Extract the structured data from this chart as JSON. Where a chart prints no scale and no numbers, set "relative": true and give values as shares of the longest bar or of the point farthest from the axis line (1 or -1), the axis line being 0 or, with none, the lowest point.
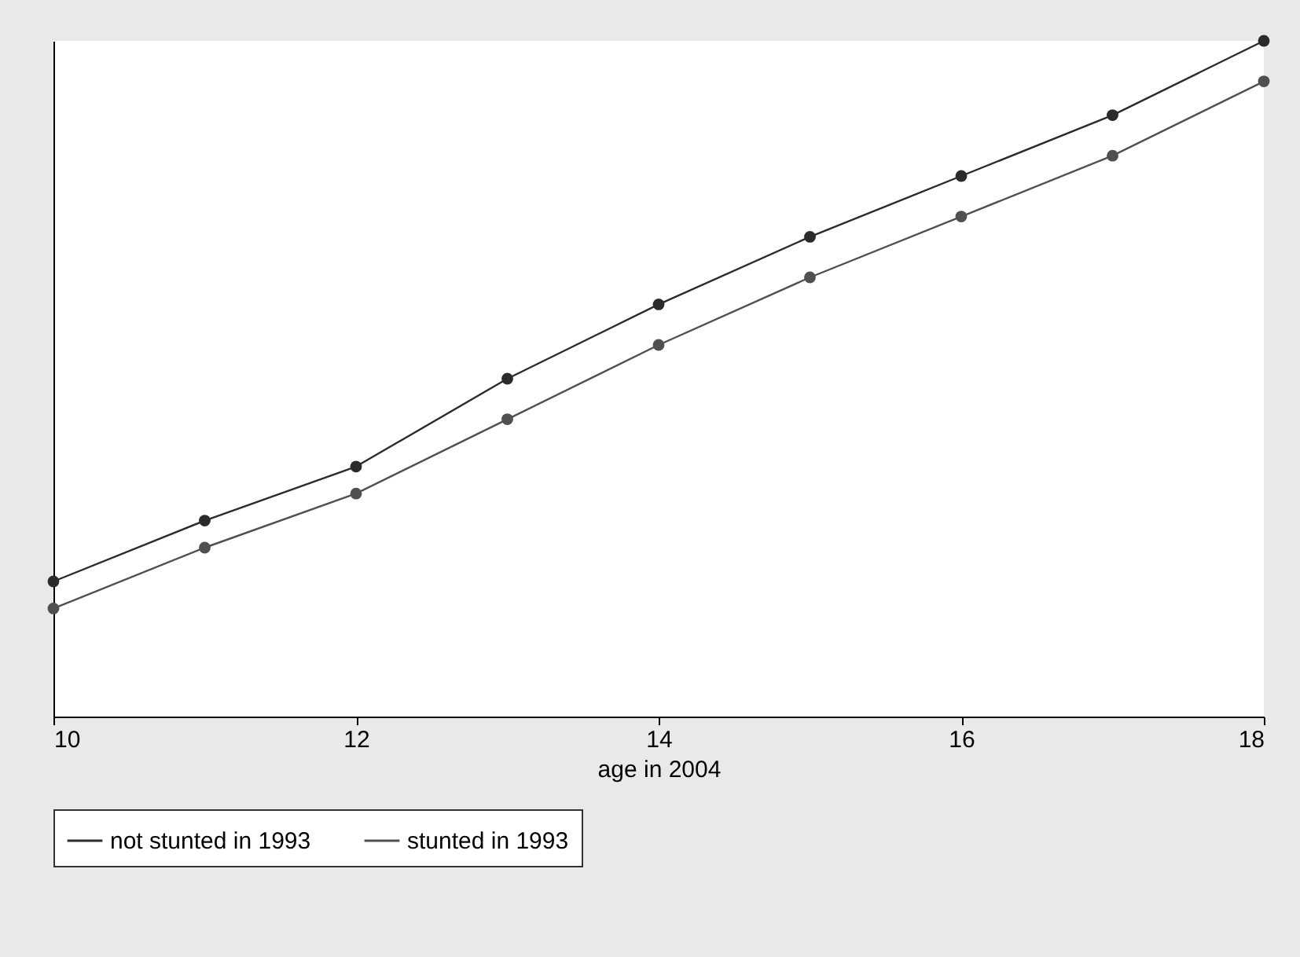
{
  "chart_data": {
    "type": "line",
    "xlabel": "age in 2004",
    "x": [
      10,
      11,
      12,
      13,
      14,
      15,
      16,
      17,
      18
    ],
    "xlim": [
      10,
      18
    ],
    "xticks": [
      10,
      12,
      14,
      16,
      18
    ],
    "relative": true,
    "marker": "circle",
    "legend": "bottom",
    "grid": false,
    "series": [
      {
        "name": "not stunted in 1993",
        "color": "#2b2b2b",
        "values": [
          0.2,
          0.29,
          0.37,
          0.5,
          0.61,
          0.71,
          0.8,
          0.89,
          1.0
        ]
      },
      {
        "name": "stunted in 1993",
        "color": "#505050",
        "values": [
          0.16,
          0.25,
          0.33,
          0.44,
          0.55,
          0.65,
          0.74,
          0.83,
          0.94
        ]
      }
    ]
  }
}
